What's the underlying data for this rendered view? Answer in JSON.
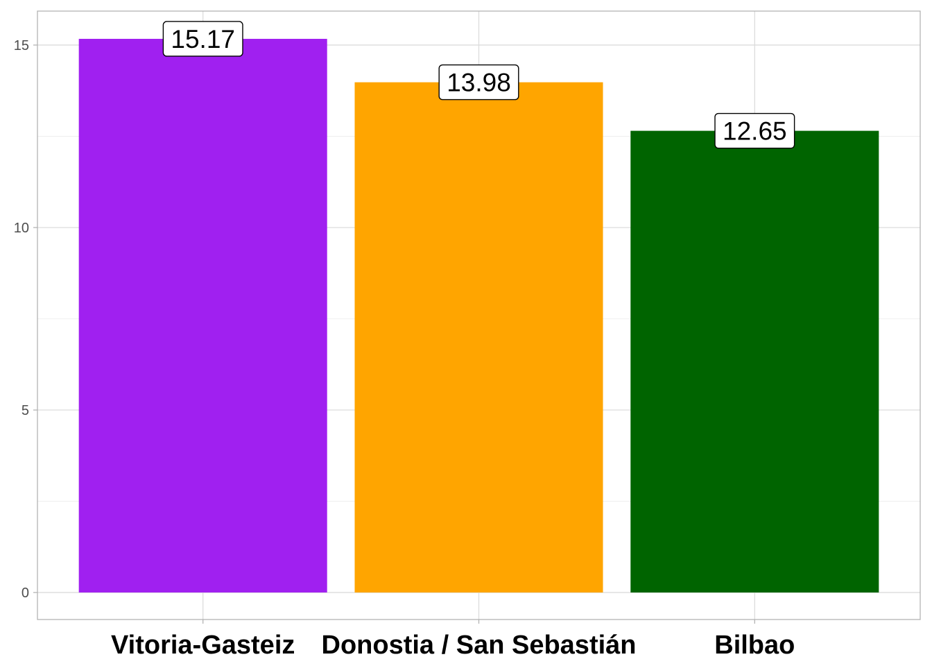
{
  "chart_data": {
    "type": "bar",
    "categories": [
      "Vitoria-Gasteiz",
      "Donostia / San Sebastián",
      "Bilbao"
    ],
    "values": [
      15.17,
      13.98,
      12.65
    ],
    "value_labels": [
      "15.17",
      "13.98",
      "12.65"
    ],
    "colors": [
      "#a020f0",
      "#ffa500",
      "#006400"
    ],
    "title": "",
    "xlabel": "",
    "ylabel": "",
    "ylim": [
      -0.74,
      15.93
    ],
    "yticks": [
      0,
      5,
      10,
      15
    ],
    "ytick_labels": [
      "0",
      "5",
      "10",
      "15"
    ],
    "grid": true,
    "legend": "none"
  }
}
